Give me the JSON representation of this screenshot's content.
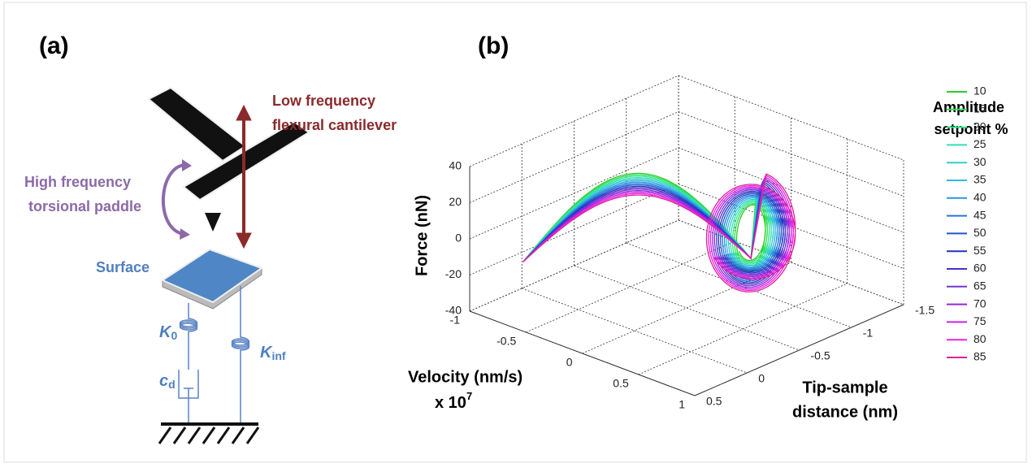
{
  "panel_a": {
    "label": "(a)",
    "flexural_label": [
      "Low frequency",
      "flexural cantilever"
    ],
    "torsional_label": [
      "High frequency",
      "torsional paddle"
    ],
    "surface_label": "Surface",
    "k0": {
      "symbol": "K",
      "subscript": "0"
    },
    "kinf": {
      "symbol": "K",
      "subscript": "inf"
    },
    "cd": {
      "symbol": "c",
      "subscript": "d"
    }
  },
  "panel_b": {
    "label": "(b)",
    "force_axis": {
      "label": "Force (nN)",
      "lim": [
        -40,
        40
      ],
      "ticks": [
        40,
        20,
        0,
        -20,
        -40
      ]
    },
    "velocity_axis": {
      "label": "Velocity (nm/s)",
      "scale": "x 10",
      "exponent": "7",
      "lim": [
        -1,
        1
      ],
      "ticks": [
        -1,
        -0.5,
        0,
        0.5,
        1
      ]
    },
    "distance_axis": {
      "label": [
        "Tip-sample",
        "distance (nm)"
      ],
      "lim": [
        0.5,
        -1.5
      ],
      "ticks": [
        0.5,
        0,
        -0.5,
        -1,
        -1.5
      ]
    },
    "legend": {
      "title": [
        "Amplitude",
        "setpoint %"
      ],
      "entries": [
        {
          "name": "10",
          "color": "#2ccc2c"
        },
        {
          "name": "15",
          "color": "#33dd55"
        },
        {
          "name": "20",
          "color": "#33e888"
        },
        {
          "name": "25",
          "color": "#33ddbb"
        },
        {
          "name": "30",
          "color": "#33cccc"
        },
        {
          "name": "35",
          "color": "#33b8e0"
        },
        {
          "name": "40",
          "color": "#2399dd"
        },
        {
          "name": "45",
          "color": "#2277dd"
        },
        {
          "name": "50",
          "color": "#2255cc"
        },
        {
          "name": "55",
          "color": "#2233bb"
        },
        {
          "name": "60",
          "color": "#4433cc"
        },
        {
          "name": "65",
          "color": "#7733cc"
        },
        {
          "name": "70",
          "color": "#9922dd"
        },
        {
          "name": "75",
          "color": "#cc22ee"
        },
        {
          "name": "80",
          "color": "#ee22dd"
        },
        {
          "name": "85",
          "color": "#dd2299"
        }
      ]
    }
  }
}
